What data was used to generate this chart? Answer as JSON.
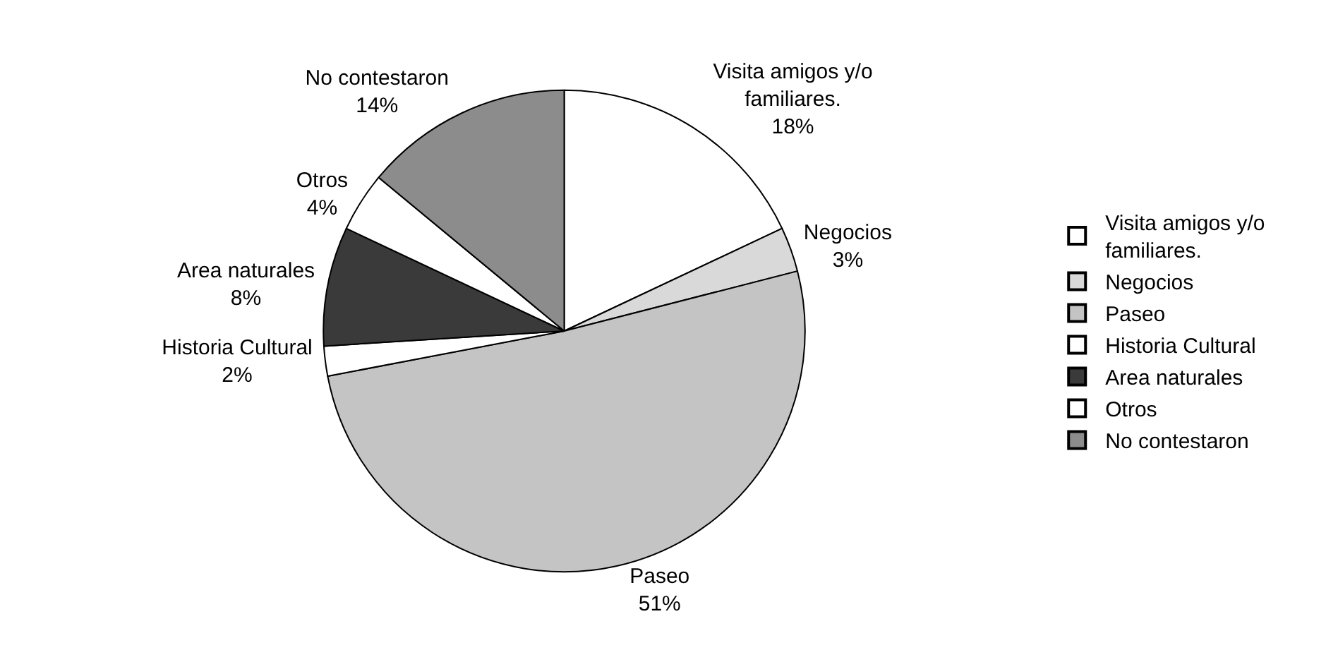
{
  "chart_data": {
    "type": "pie",
    "categories": [
      "Visita amigos y/o familiares.",
      "Negocios",
      "Paseo",
      "Historia Cultural",
      "Area naturales",
      "Otros",
      "No contestaron"
    ],
    "values": [
      18,
      3,
      51,
      2,
      8,
      4,
      14
    ],
    "value_labels": [
      "18%",
      "3%",
      "51%",
      "2%",
      "8%",
      "4%",
      "14%"
    ],
    "colors": [
      "#ffffff",
      "#d9d9d9",
      "#c4c4c4",
      "#ffffff",
      "#3a3a3a",
      "#ffffff",
      "#8c8c8c"
    ],
    "legend": "right"
  }
}
